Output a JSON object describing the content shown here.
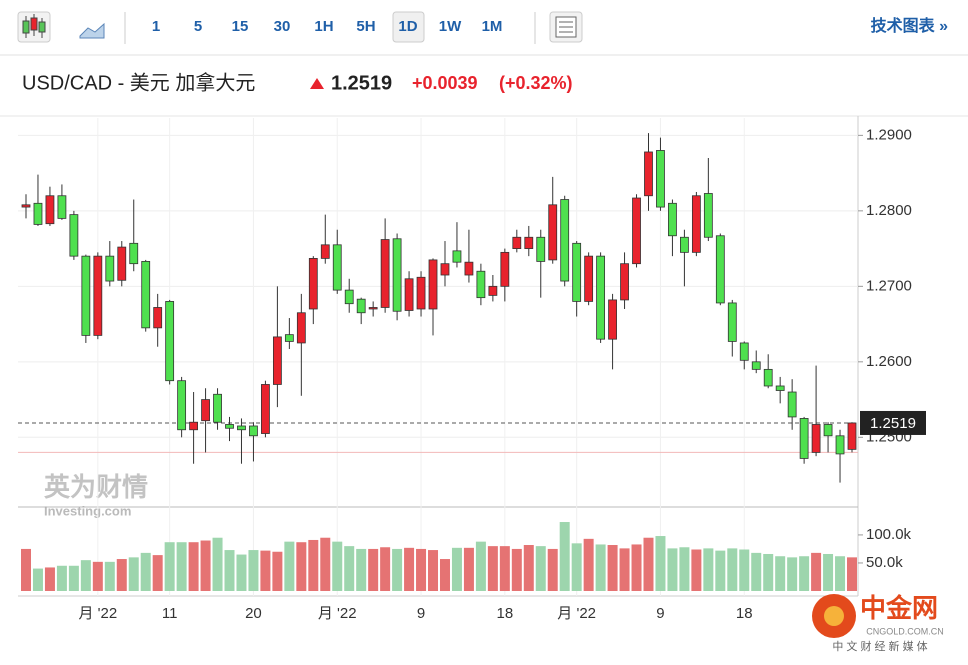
{
  "toolbar": {
    "intervals": [
      "1",
      "5",
      "15",
      "30",
      "1H",
      "5H",
      "1D",
      "1W",
      "1M"
    ],
    "active": "1D",
    "link": "技术图表 »"
  },
  "header": {
    "symbol": "USD/CAD - 美元 加拿大元",
    "change": "+0.0039",
    "change_pct": "(+0.32%)"
  },
  "watermarks": {
    "brand": "英为财情",
    "brand_en": "Investing.com",
    "logo": "中金网",
    "logo_url": "CNGOLD.COM.CN",
    "logo_tag": "中 文 财 经 新 媒 体"
  },
  "chart_data": {
    "type": "candlestick",
    "up_color": "#e8232d",
    "down_color": "#4fe04f",
    "volume_up_color": "#e57373",
    "volume_down_color": "#9dd5ad",
    "ylim": [
      1.2409,
      1.2923
    ],
    "yticks": [
      {
        "value": 1.29,
        "label": "1.2900"
      },
      {
        "value": 1.28,
        "label": "1.2800"
      },
      {
        "value": 1.27,
        "label": "1.2700"
      },
      {
        "value": 1.26,
        "label": "1.2600"
      },
      {
        "value": 1.25,
        "label": "1.2500"
      }
    ],
    "y2lim": [
      0,
      148000
    ],
    "y2ticks": [
      {
        "value": 100000,
        "label": "100.0k"
      },
      {
        "value": 50000,
        "label": "50.0k"
      }
    ],
    "last_price": {
      "value": 1.2519,
      "label": "1.2519"
    },
    "reference_line": 1.248,
    "categories": [
      null,
      null,
      null,
      null,
      null,
      null,
      "月 '22",
      null,
      null,
      null,
      null,
      null,
      "11",
      null,
      null,
      null,
      null,
      null,
      null,
      "20",
      null,
      null,
      null,
      null,
      null,
      null,
      "月 '22",
      null,
      null,
      null,
      null,
      null,
      null,
      "9",
      null,
      null,
      null,
      null,
      null,
      null,
      "18",
      null,
      null,
      null,
      null,
      null,
      "月 '22",
      null,
      null,
      null,
      null,
      null,
      null,
      "9",
      null,
      null,
      null,
      null,
      null,
      null,
      "18",
      null,
      null,
      null,
      null,
      null,
      null,
      null,
      null,
      null
    ],
    "open": [
      1.2805,
      1.281,
      1.2783,
      1.282,
      1.2795,
      1.274,
      1.2635,
      1.274,
      1.2708,
      1.2757,
      1.2733,
      1.2645,
      1.268,
      1.2575,
      1.251,
      1.2522,
      1.2557,
      1.2517,
      1.2515,
      1.2515,
      1.2505,
      1.257,
      1.2636,
      1.2625,
      1.267,
      1.2737,
      1.2755,
      1.2695,
      1.2683,
      1.267,
      1.2672,
      1.2763,
      1.2668,
      1.267,
      1.267,
      1.2715,
      1.2747,
      1.2715,
      1.272,
      1.2688,
      1.27,
      1.275,
      1.275,
      1.2765,
      1.2735,
      1.2815,
      1.2757,
      1.268,
      1.274,
      1.263,
      1.2682,
      1.273,
      1.282,
      1.288,
      1.281,
      1.2765,
      1.2745,
      1.2823,
      1.2767,
      1.2678,
      1.2625,
      1.26,
      1.259,
      1.2568,
      1.256,
      1.2525,
      1.248,
      1.2517,
      1.2502,
      1.2484
    ],
    "high": [
      1.2822,
      1.2848,
      1.2832,
      1.2835,
      1.28,
      1.2742,
      1.2745,
      1.276,
      1.276,
      1.2815,
      1.2735,
      1.269,
      1.2682,
      1.258,
      1.256,
      1.2565,
      1.2565,
      1.2527,
      1.2525,
      1.252,
      1.2575,
      1.27,
      1.2658,
      1.269,
      1.274,
      1.2795,
      1.2775,
      1.271,
      1.2685,
      1.268,
      1.279,
      1.277,
      1.272,
      1.272,
      1.2737,
      1.276,
      1.2785,
      1.2775,
      1.273,
      1.2715,
      1.275,
      1.2775,
      1.278,
      1.2775,
      1.2845,
      1.282,
      1.276,
      1.2745,
      1.2745,
      1.269,
      1.2745,
      1.2822,
      1.2903,
      1.2897,
      1.2815,
      1.2775,
      1.2825,
      1.287,
      1.277,
      1.2682,
      1.2627,
      1.2615,
      1.261,
      1.258,
      1.2577,
      1.2527,
      1.2595,
      1.252,
      1.251,
      1.252
    ],
    "low": [
      1.279,
      1.278,
      1.278,
      1.2788,
      1.2735,
      1.2625,
      1.263,
      1.27,
      1.27,
      1.272,
      1.264,
      1.262,
      1.257,
      1.25,
      1.2465,
      1.248,
      1.251,
      1.2495,
      1.2465,
      1.2468,
      1.25,
      1.254,
      1.2617,
      1.2555,
      1.265,
      1.273,
      1.269,
      1.2665,
      1.265,
      1.266,
      1.2665,
      1.2655,
      1.266,
      1.266,
      1.2635,
      1.27,
      1.2725,
      1.2705,
      1.2675,
      1.268,
      1.268,
      1.2745,
      1.274,
      1.2685,
      1.273,
      1.27,
      1.266,
      1.2675,
      1.2625,
      1.259,
      1.267,
      1.2725,
      1.28,
      1.28,
      1.274,
      1.27,
      1.274,
      1.276,
      1.2675,
      1.2607,
      1.259,
      1.2585,
      1.2565,
      1.2545,
      1.251,
      1.2465,
      1.2475,
      1.248,
      1.244,
      1.248
    ],
    "close": [
      1.2808,
      1.2782,
      1.282,
      1.279,
      1.274,
      1.2635,
      1.274,
      1.2707,
      1.2752,
      1.273,
      1.2645,
      1.2672,
      1.2575,
      1.251,
      1.252,
      1.255,
      1.252,
      1.2512,
      1.251,
      1.2502,
      1.257,
      1.2633,
      1.2627,
      1.2665,
      1.2737,
      1.2755,
      1.2695,
      1.2677,
      1.2665,
      1.2672,
      1.2762,
      1.2667,
      1.271,
      1.2712,
      1.2735,
      1.273,
      1.2732,
      1.2732,
      1.2685,
      1.27,
      1.2745,
      1.2765,
      1.2765,
      1.2733,
      1.2808,
      1.2707,
      1.268,
      1.274,
      1.263,
      1.2682,
      1.273,
      1.2817,
      1.2878,
      1.2805,
      1.2767,
      1.2745,
      1.282,
      1.2765,
      1.2678,
      1.2627,
      1.2602,
      1.259,
      1.2568,
      1.2562,
      1.2527,
      1.2472,
      1.2517,
      1.2502,
      1.2478,
      1.2519
    ],
    "volume": [
      75000,
      40000,
      42000,
      45000,
      45000,
      55000,
      52000,
      52000,
      57000,
      60000,
      68000,
      64000,
      87000,
      87000,
      87000,
      90000,
      95000,
      73000,
      65000,
      73000,
      72000,
      70000,
      88000,
      87000,
      91000,
      95000,
      88000,
      80000,
      75000,
      75000,
      78000,
      75000,
      77000,
      75000,
      73000,
      57000,
      77000,
      77000,
      88000,
      80000,
      80000,
      75000,
      82000,
      80000,
      75000,
      123000,
      85000,
      93000,
      83000,
      82000,
      76000,
      83000,
      95000,
      98000,
      76000,
      78000,
      74000,
      76000,
      72000,
      76000,
      74000,
      68000,
      66000,
      62000,
      60000,
      62000,
      68000,
      66000,
      62000,
      60000
    ]
  }
}
